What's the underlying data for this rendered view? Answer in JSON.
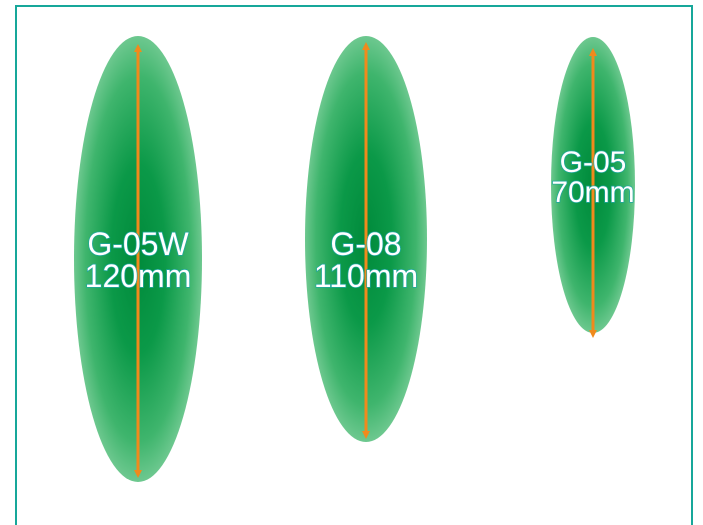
{
  "colors": {
    "frame": "#17a79a",
    "spot_core": "#008a3b",
    "spot_edge": "#d8f2e2",
    "arrow": "#f08a1c",
    "label_fill": "#ffffff",
    "label_outline": "#1fa7a0"
  },
  "spots": [
    {
      "code": "G-05W",
      "size": "120mm"
    },
    {
      "code": "G-08",
      "size": "110mm"
    },
    {
      "code": "G-05",
      "size": "70mm"
    }
  ]
}
